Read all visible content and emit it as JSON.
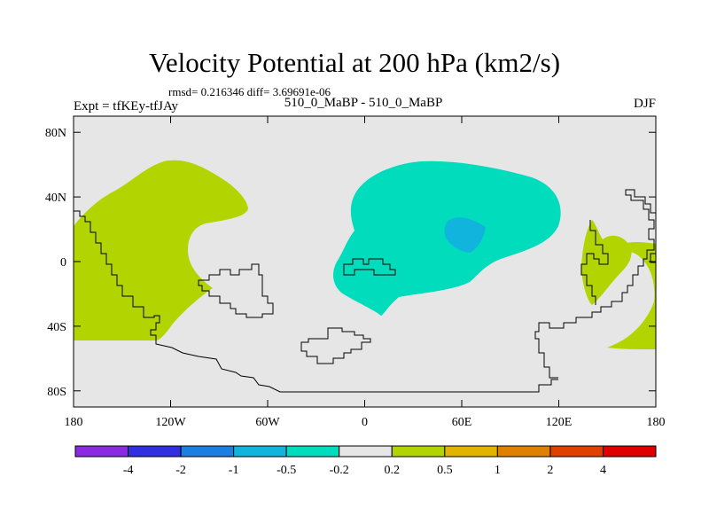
{
  "title": "Velocity Potential at 200 hPa (km2/s)",
  "stats": "rmsd= 0.216346 diff= 3.69691e-06",
  "left_label": "Expt = tfKEy-tfJAy",
  "center_label": "510_0_MaBP - 510_0_MaBP",
  "right_label": "DJF",
  "colors": {
    "background_field": "#e6e6e6",
    "positive_contour": "#b2d400",
    "negative_contour": "#00dcbc",
    "negative_core": "#10b4dc",
    "coastline": "#000000"
  },
  "map_axes": {
    "lon_range": [
      -180,
      180
    ],
    "lat_range": [
      -90,
      90
    ],
    "x_ticks": [
      {
        "value": -180,
        "label": "180"
      },
      {
        "value": -120,
        "label": "120W"
      },
      {
        "value": -60,
        "label": "60W"
      },
      {
        "value": 0,
        "label": "0"
      },
      {
        "value": 60,
        "label": "60E"
      },
      {
        "value": 120,
        "label": "120E"
      },
      {
        "value": 180,
        "label": "180"
      }
    ],
    "y_ticks": [
      {
        "value": 80,
        "label": "80N"
      },
      {
        "value": 40,
        "label": "40N"
      },
      {
        "value": 0,
        "label": "0"
      },
      {
        "value": -40,
        "label": "40S"
      },
      {
        "value": -80,
        "label": "80S"
      }
    ]
  },
  "colorbar": {
    "colors": [
      "#8a2be2",
      "#3030e0",
      "#1a7fe0",
      "#10b4dc",
      "#00dcbc",
      "#e6e6e6",
      "#b2d400",
      "#e0b400",
      "#e08000",
      "#e04000",
      "#e00000"
    ],
    "labels": [
      "-4",
      "-2",
      "-1",
      "-0.5",
      "-0.2",
      "0.2",
      "0.5",
      "1",
      "2",
      "4"
    ]
  }
}
